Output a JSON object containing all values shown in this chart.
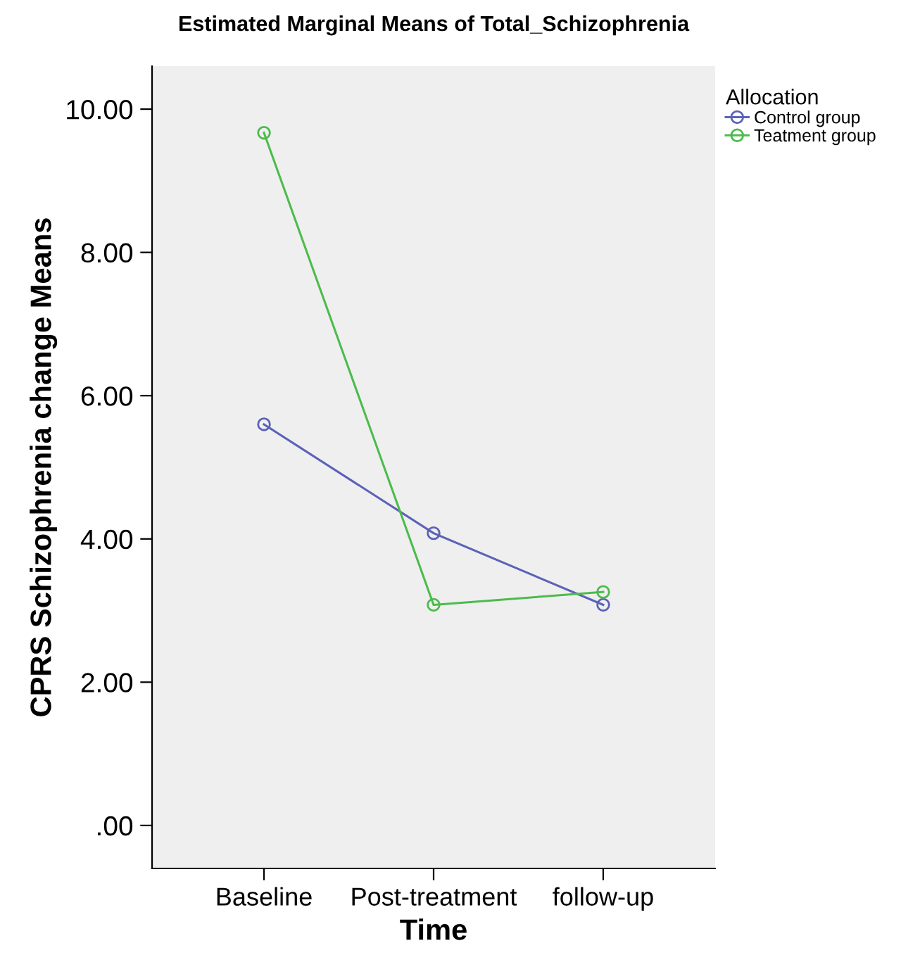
{
  "chart_data": {
    "type": "line",
    "title": "Estimated Marginal Means of Total_Schizophrenia",
    "xlabel": "Time",
    "ylabel": "CPRS Schizophrenia change Means",
    "legend_title": "Allocation",
    "categories": [
      "Baseline",
      "Post-treatment",
      "follow-up"
    ],
    "series": [
      {
        "name": "Control group",
        "color": "#5b62b8",
        "values": [
          5.6,
          4.08,
          3.08
        ]
      },
      {
        "name": "Teatment group",
        "color": "#4cbb4c",
        "values": [
          9.67,
          3.08,
          3.26
        ]
      }
    ],
    "ylim": [
      -0.6,
      10.6
    ],
    "yticks": [
      {
        "value": 0,
        "label": ".00"
      },
      {
        "value": 2,
        "label": "2.00"
      },
      {
        "value": 4,
        "label": "4.00"
      },
      {
        "value": 6,
        "label": "6.00"
      },
      {
        "value": 8,
        "label": "8.00"
      },
      {
        "value": 10,
        "label": "10.00"
      }
    ],
    "marker": "circle",
    "line_style": "solid",
    "legend": "top right",
    "grid": false
  }
}
